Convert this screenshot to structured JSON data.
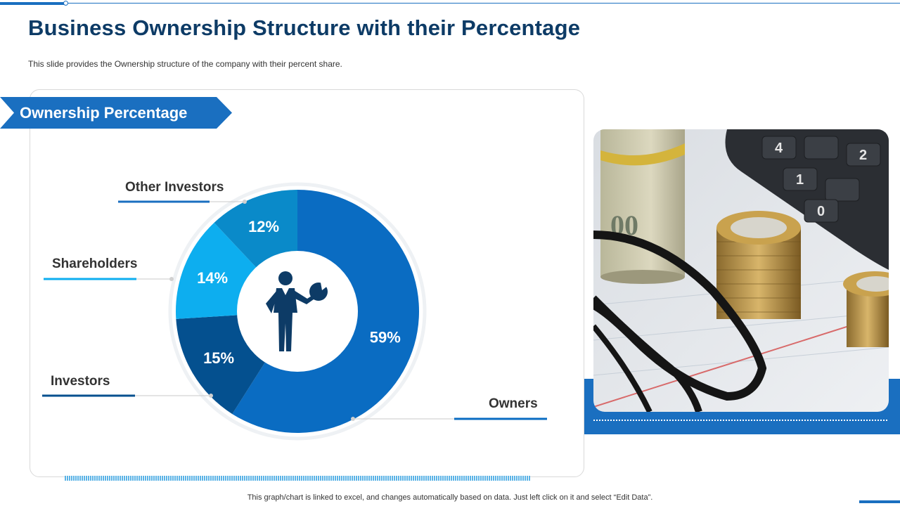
{
  "header": {
    "title": "Business Ownership Structure with their Percentage",
    "subtitle": "This slide provides  the Ownership structure of the company with their percent share."
  },
  "panel": {
    "ribbon_label": "Ownership Percentage"
  },
  "chart_data": {
    "type": "pie",
    "style": "donut",
    "title": "",
    "categories": [
      "Owners",
      "Investors",
      "Shareholders",
      "Other Investors"
    ],
    "values": [
      59,
      15,
      14,
      12
    ],
    "value_labels": [
      "59%",
      "15%",
      "14%",
      "12%"
    ],
    "colors": [
      "#0a6cc2",
      "#04508f",
      "#0daeef",
      "#0a8ac9"
    ],
    "unit": "%",
    "center_icon": "businessman-with-pie-chart-icon",
    "legend_placement": "callouts"
  },
  "photo": {
    "icon": "money-coins-calculator-glasses-photo"
  },
  "footer": {
    "note": "This graph/chart is linked to excel,  and changes automatically based on data. Just left click on it and select “Edit Data”."
  }
}
